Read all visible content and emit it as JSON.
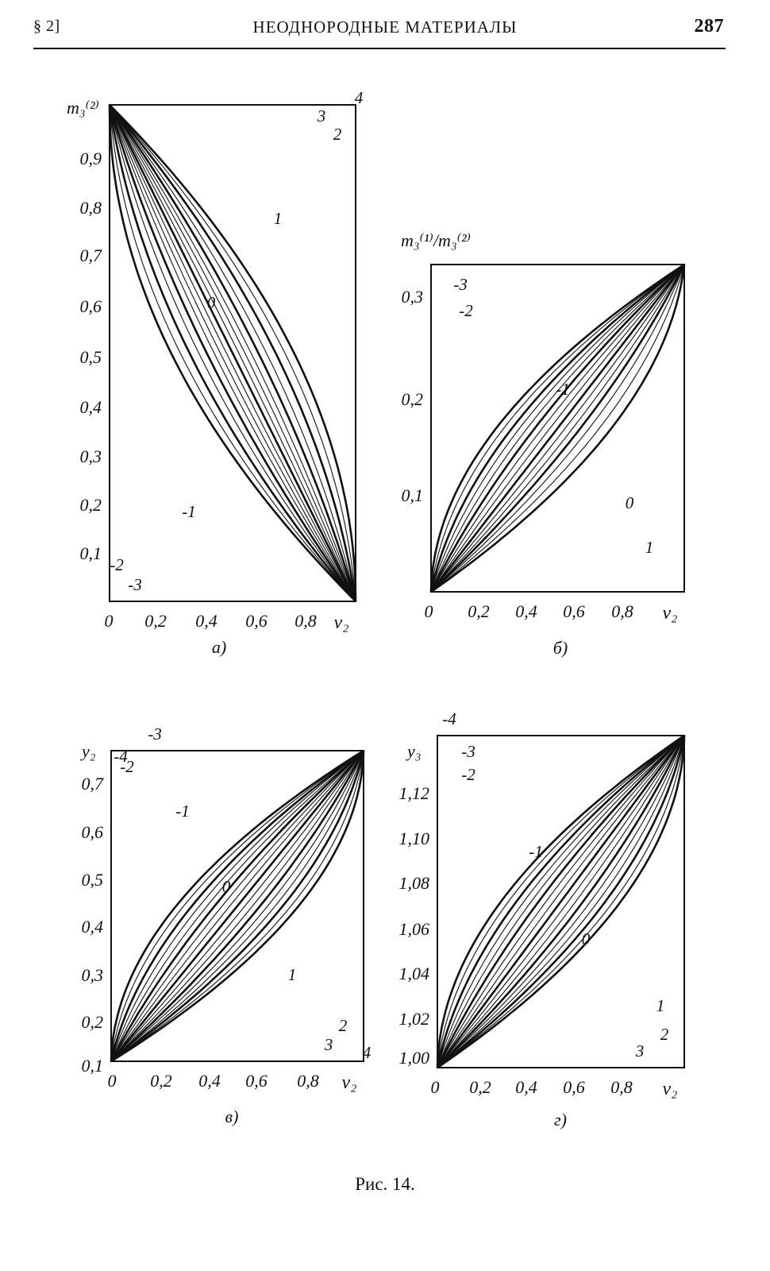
{
  "header": {
    "section": "§ 2]",
    "title": "НЕОДНОРОДНЫЕ МАТЕРИАЛЫ",
    "page": "287"
  },
  "caption": "Рис. 14.",
  "chart_data": [
    {
      "type": "line",
      "panel_label": "а)",
      "ylabel": "m₃⁽²⁾",
      "xlabel": "v₂",
      "x_ticks": [
        "0",
        "0,2",
        "0,4",
        "0,6",
        "0,8"
      ],
      "y_ticks": [
        "0,1",
        "0,2",
        "0,3",
        "0,4",
        "0,5",
        "0,6",
        "0,7",
        "0,8",
        "0,9"
      ],
      "xlim": [
        0,
        1
      ],
      "ylim": [
        0,
        1
      ],
      "trend": "decreasing",
      "curve_labels": [
        "4",
        "3",
        "2",
        "1",
        "0",
        "-1",
        "-2",
        "-3"
      ],
      "series_shape_k": [
        -1.0,
        -0.85,
        -0.7,
        -0.55,
        -0.42,
        -0.3,
        -0.2,
        -0.1,
        0,
        0.1,
        0.2,
        0.3,
        0.42,
        0.55,
        0.7,
        0.85,
        1.0
      ],
      "bold_series_k": [
        -1.0,
        -0.7,
        -0.42,
        0,
        0.42,
        0.7,
        1.0
      ]
    },
    {
      "type": "line",
      "panel_label": "б)",
      "ylabel": "m₃⁽¹⁾/m₃⁽²⁾",
      "xlabel": "v₂",
      "x_ticks": [
        "0",
        "0,2",
        "0,4",
        "0,6",
        "0,8"
      ],
      "y_ticks": [
        "0,1",
        "0,2",
        "0,3"
      ],
      "xlim": [
        0,
        1
      ],
      "ylim": [
        0,
        0.33
      ],
      "trend": "increasing",
      "curve_labels": [
        "-3",
        "-2",
        "-1",
        "0",
        "1"
      ],
      "series_shape_k": [
        -0.97,
        -0.85,
        -0.72,
        -0.6,
        -0.48,
        -0.36,
        -0.24,
        -0.12,
        0,
        0.12,
        0.24,
        0.36,
        0.5,
        0.66,
        0.85
      ],
      "bold_series_k": [
        -0.97,
        -0.72,
        -0.36,
        0,
        0.36,
        0.85
      ]
    },
    {
      "type": "line",
      "panel_label": "в)",
      "ylabel": "y₂",
      "xlabel": "v₂",
      "x_ticks": [
        "0",
        "0,2",
        "0,4",
        "0,6",
        "0,8"
      ],
      "y_ticks": [
        "0,1",
        "0,2",
        "0,3",
        "0,4",
        "0,5",
        "0,6",
        "0,7"
      ],
      "xlim": [
        0,
        1
      ],
      "ylim": [
        0.1,
        0.75
      ],
      "trend": "increasing",
      "curve_labels": [
        "-4",
        "-3",
        "-2",
        "-1",
        "0",
        "1",
        "2",
        "3",
        "4"
      ],
      "series_shape_k": [
        -0.97,
        -0.85,
        -0.72,
        -0.6,
        -0.48,
        -0.36,
        -0.24,
        -0.12,
        0,
        0.12,
        0.24,
        0.36,
        0.48,
        0.6,
        0.72,
        0.85,
        0.97
      ],
      "bold_series_k": [
        -0.97,
        -0.72,
        -0.36,
        0,
        0.36,
        0.72,
        0.97
      ]
    },
    {
      "type": "line",
      "panel_label": "г)",
      "ylabel": "y₃",
      "xlabel": "v₂",
      "x_ticks": [
        "0",
        "0,2",
        "0,4",
        "0,6",
        "0,8"
      ],
      "y_ticks": [
        "1,00",
        "1,02",
        "1,04",
        "1,06",
        "1,08",
        "1,10",
        "1,12"
      ],
      "xlim": [
        0,
        1
      ],
      "ylim": [
        1.0,
        1.135
      ],
      "trend": "increasing",
      "curve_labels": [
        "-4",
        "-3",
        "-2",
        "-1",
        "0",
        "1",
        "2",
        "3"
      ],
      "series_shape_k": [
        -0.97,
        -0.85,
        -0.72,
        -0.6,
        -0.48,
        -0.36,
        -0.24,
        -0.12,
        0,
        0.12,
        0.24,
        0.36,
        0.48,
        0.6,
        0.72,
        0.85,
        0.97
      ],
      "bold_series_k": [
        -0.97,
        -0.72,
        -0.36,
        0,
        0.36,
        0.72,
        0.97
      ]
    }
  ]
}
